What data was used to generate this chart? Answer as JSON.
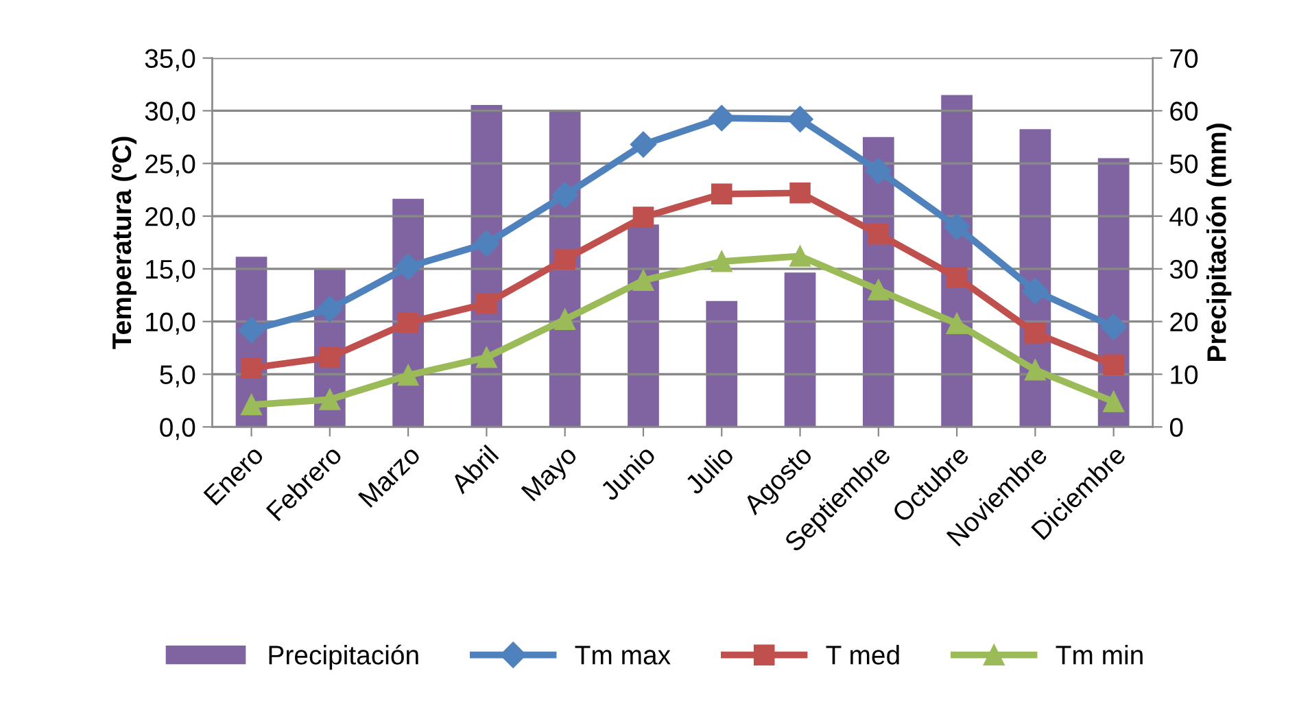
{
  "chart_data": {
    "type": "line",
    "categories": [
      "Enero",
      "Febrero",
      "Marzo",
      "Abril",
      "Mayo",
      "Junio",
      "Julio",
      "Agosto",
      "Septiembre",
      "Octubre",
      "Noviembre",
      "Diciembre"
    ],
    "ylabel": "Temperatura (ºC)",
    "y2label": "Precipitación (mm)",
    "ylim": [
      0,
      35
    ],
    "yticks": [
      {
        "value": 0,
        "label": "0,0"
      },
      {
        "value": 5,
        "label": "5,0"
      },
      {
        "value": 10,
        "label": "10,0"
      },
      {
        "value": 15,
        "label": "15,0"
      },
      {
        "value": 20,
        "label": "20,0"
      },
      {
        "value": 25,
        "label": "25,0"
      },
      {
        "value": 30,
        "label": "30,0"
      },
      {
        "value": 35,
        "label": "35,0"
      }
    ],
    "y2lim": [
      0,
      70
    ],
    "y2ticks": [
      0,
      10,
      20,
      30,
      40,
      50,
      60,
      70
    ],
    "grid": "y",
    "legend": "bottom",
    "series": [
      {
        "name": "Precipitación",
        "type": "bar",
        "axis": "y2",
        "color": "#8064a2",
        "values": [
          32.3,
          30.0,
          43.3,
          61.1,
          60.1,
          38.4,
          23.9,
          29.3,
          55.0,
          63.0,
          56.5,
          51.0
        ]
      },
      {
        "name": "Tm max",
        "color": "#4f81bd",
        "marker": "diamond",
        "values": [
          9.2,
          11.2,
          15.2,
          17.4,
          22.0,
          26.8,
          29.3,
          29.2,
          24.3,
          19.0,
          12.9,
          9.5
        ]
      },
      {
        "name": "T med",
        "color": "#c0504d",
        "marker": "square",
        "values": [
          5.6,
          6.6,
          9.9,
          11.7,
          15.9,
          19.9,
          22.1,
          22.2,
          18.3,
          14.2,
          8.9,
          5.9
        ]
      },
      {
        "name": "Tm min",
        "color": "#9bbb59",
        "marker": "triangle",
        "values": [
          2.1,
          2.6,
          4.9,
          6.6,
          10.2,
          13.9,
          15.7,
          16.2,
          13.0,
          9.8,
          5.4,
          2.4
        ]
      }
    ]
  }
}
